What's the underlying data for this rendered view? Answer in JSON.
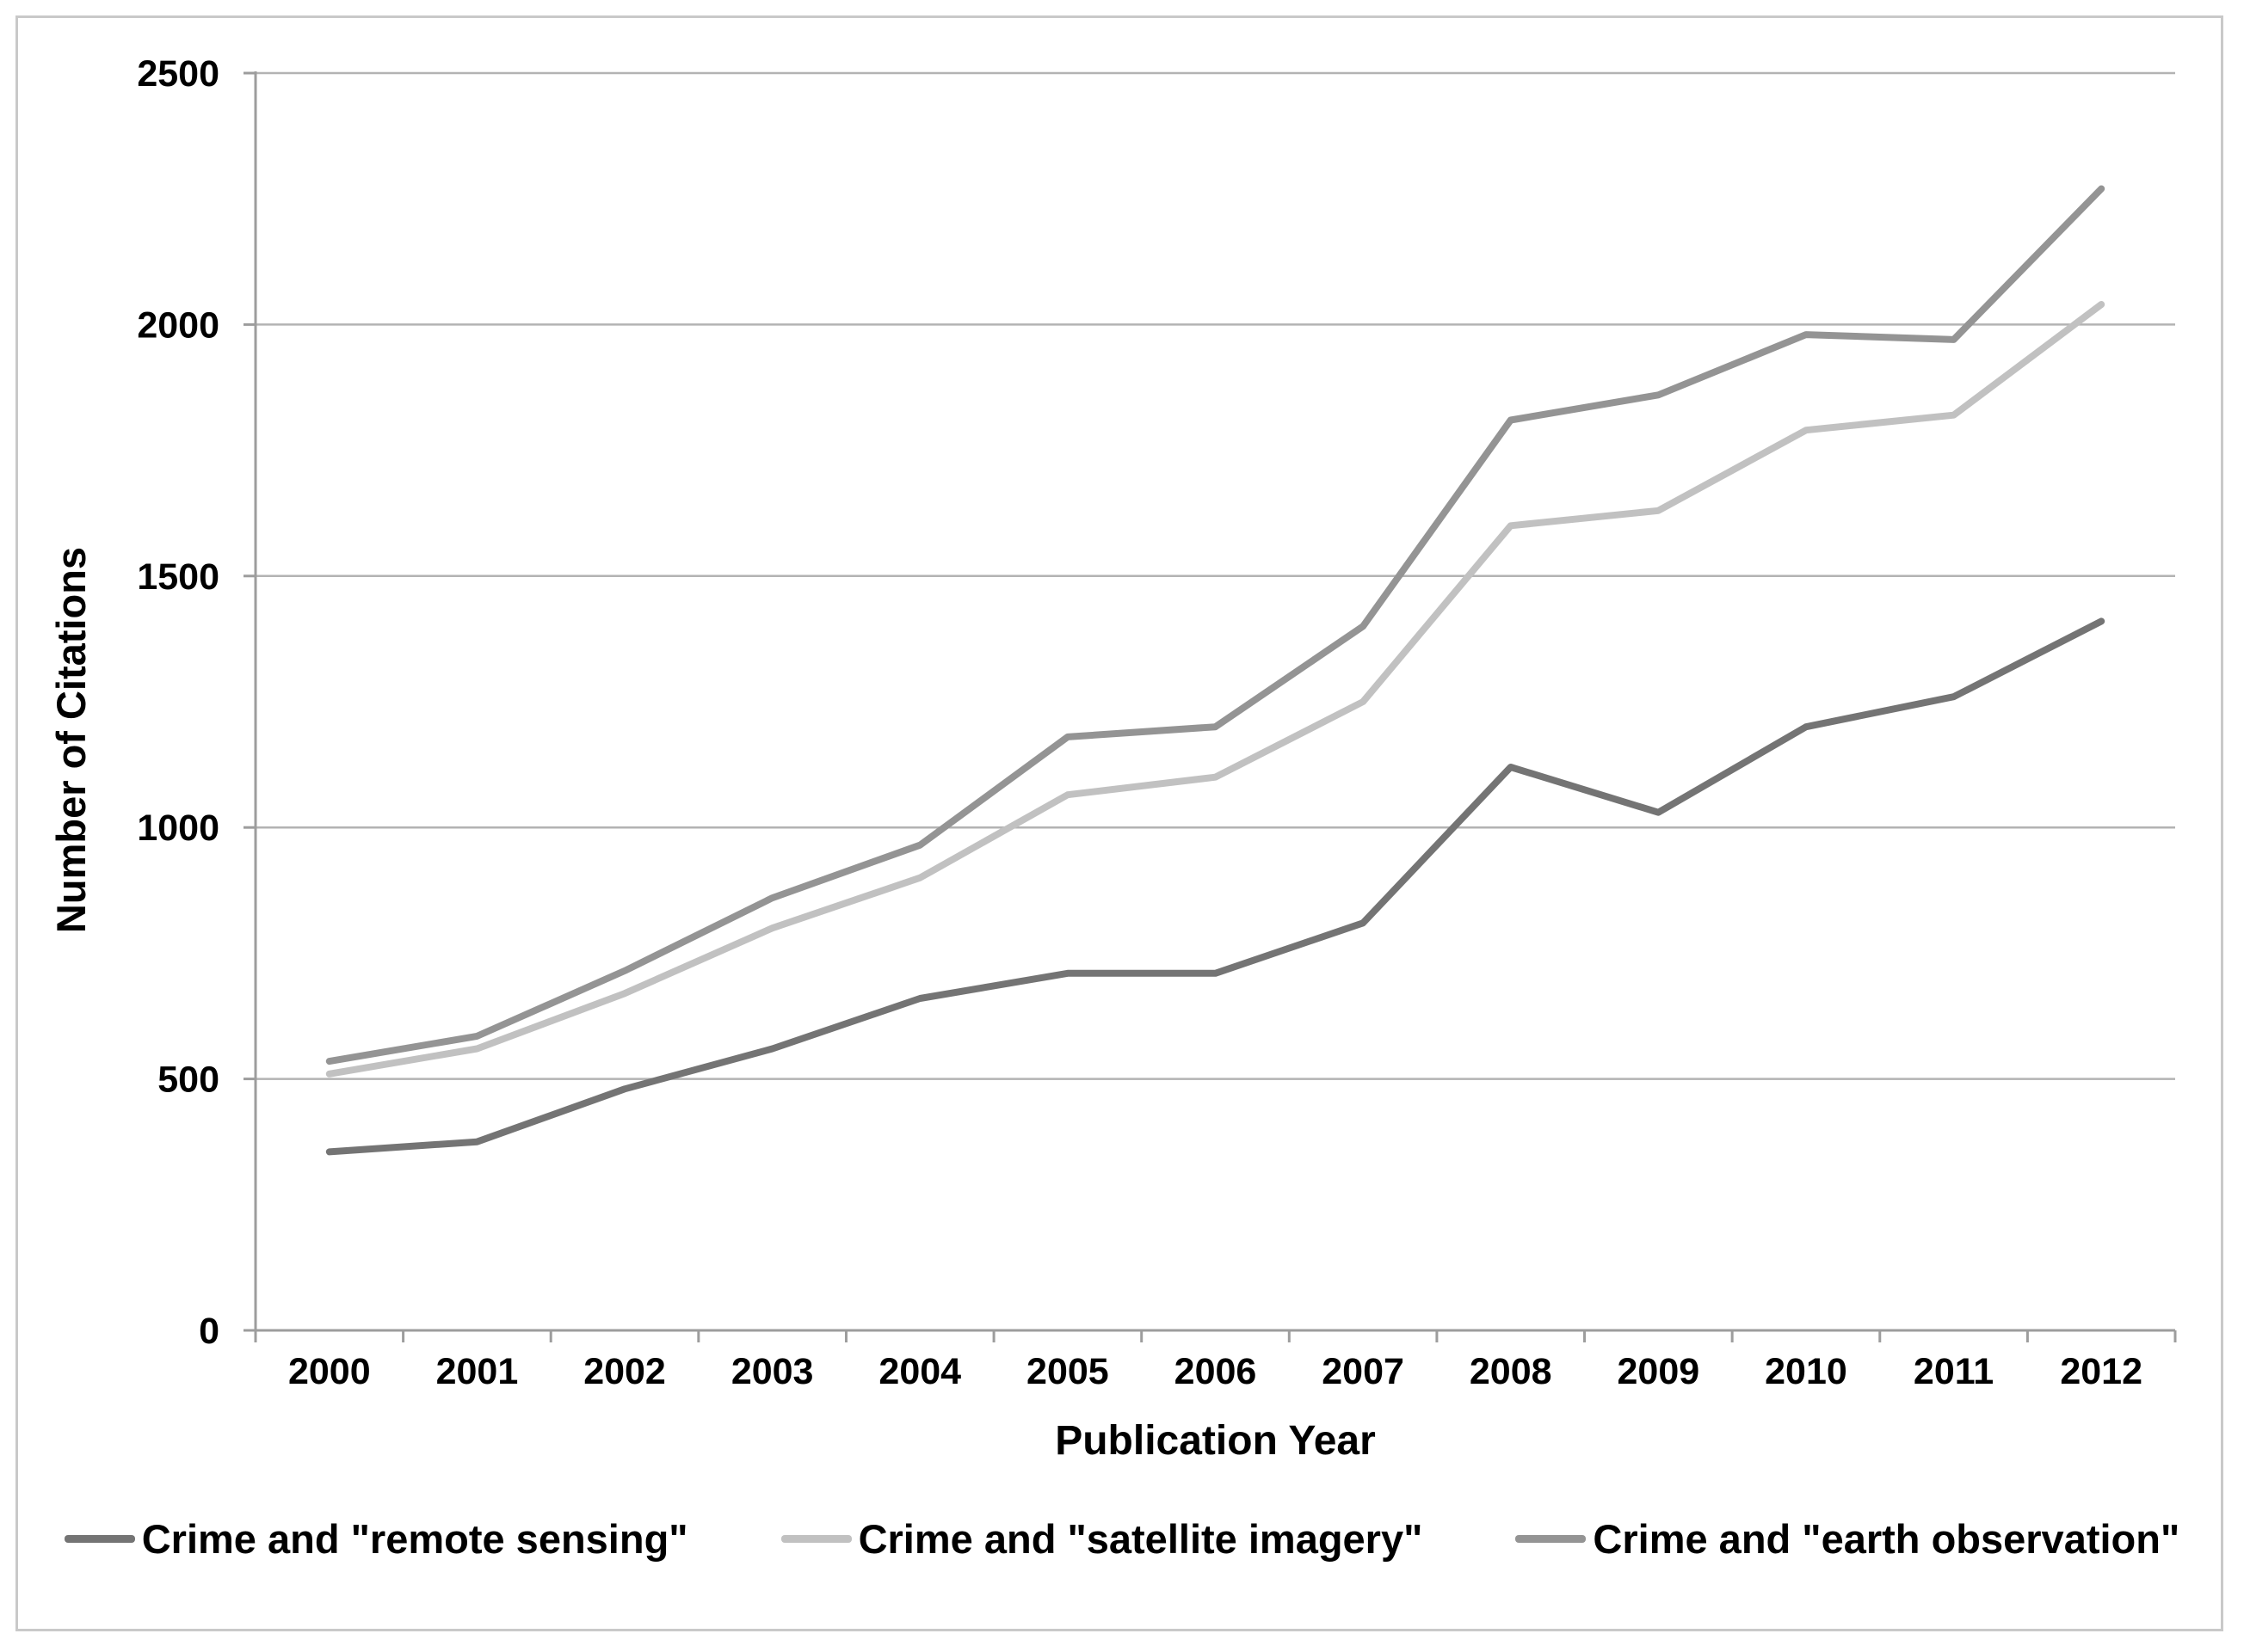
{
  "chart_data": {
    "type": "line",
    "title": "",
    "xlabel": "Publication Year",
    "ylabel": "Number of Citations",
    "categories": [
      "2000",
      "2001",
      "2002",
      "2003",
      "2004",
      "2005",
      "2006",
      "2007",
      "2008",
      "2009",
      "2010",
      "2011",
      "2012"
    ],
    "series": [
      {
        "name": "Crime and \"remote sensing\"",
        "color": "#747474",
        "values": [
          355,
          375,
          480,
          560,
          660,
          710,
          710,
          810,
          1120,
          1030,
          1200,
          1260,
          1410
        ]
      },
      {
        "name": "Crime and \"satellite imagery\"",
        "color": "#c1c1c1",
        "values": [
          510,
          560,
          670,
          800,
          900,
          1065,
          1100,
          1250,
          1600,
          1630,
          1790,
          1820,
          2040
        ]
      },
      {
        "name": "Crime and \"earth observation\"",
        "color": "#949494",
        "values": [
          535,
          585,
          715,
          860,
          965,
          1180,
          1200,
          1400,
          1810,
          1860,
          1980,
          1970,
          2270
        ]
      }
    ],
    "ylim": [
      0,
      2500
    ],
    "y_tick_step": 500,
    "y_tick_labels": [
      "0",
      "500",
      "1000",
      "1500",
      "2000",
      "2500"
    ],
    "grid": true,
    "legend_position": "bottom"
  },
  "style": {
    "background": "#ffffff",
    "frame_border": "#c9c9c9",
    "gridline": "#b3b3b3",
    "axis": "#9d9d9d",
    "tick_text": "#000000",
    "line_width": 8
  }
}
